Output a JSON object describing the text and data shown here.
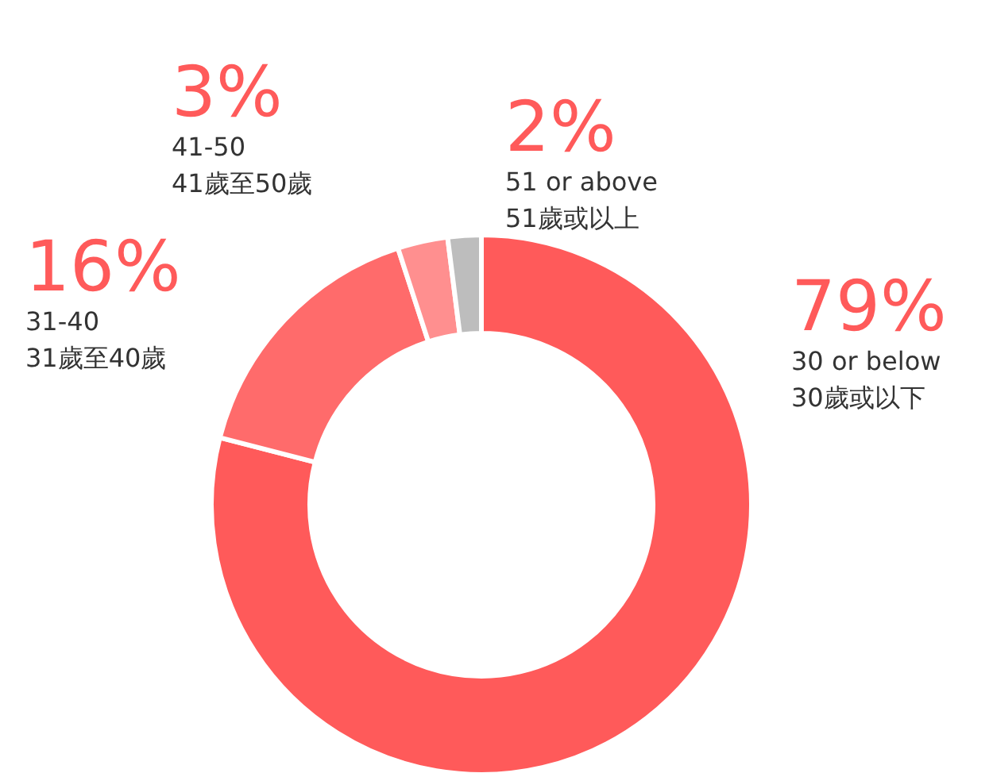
{
  "chart_data": {
    "type": "donut",
    "categories": [
      "30 or below\n30歲或以下",
      "31-40\n31歲至40歲",
      "41-50\n41歲至50歲",
      "51 or above\n51歲或以上"
    ],
    "values": [
      79,
      16,
      3,
      2
    ],
    "value_labels": [
      "79%",
      "16%",
      "3%",
      "2%"
    ],
    "colors": [
      "#ff5a5a",
      "#ff6b6b",
      "#ff8f8f",
      "#bdbdbd"
    ]
  }
}
